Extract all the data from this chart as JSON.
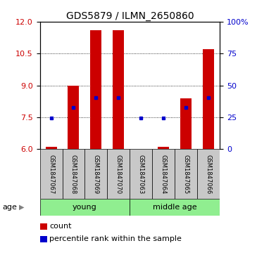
{
  "title": "GDS5879 / ILMN_2650860",
  "samples": [
    "GSM1847067",
    "GSM1847068",
    "GSM1847069",
    "GSM1847070",
    "GSM1847063",
    "GSM1847064",
    "GSM1847065",
    "GSM1847066"
  ],
  "bar_values": [
    6.1,
    9.0,
    11.6,
    11.6,
    6.0,
    6.1,
    8.4,
    10.7
  ],
  "bar_base": 6.0,
  "percentile_values": [
    7.48,
    7.95,
    8.42,
    8.42,
    7.48,
    7.48,
    7.95,
    8.42
  ],
  "ylim_left": [
    6,
    12
  ],
  "ylim_right": [
    0,
    100
  ],
  "yticks_left": [
    6,
    7.5,
    9,
    10.5,
    12
  ],
  "yticks_right": [
    0,
    25,
    50,
    75,
    100
  ],
  "ytick_right_labels": [
    "0",
    "25",
    "50",
    "75",
    "100%"
  ],
  "bar_color": "#cc0000",
  "dot_color": "#0000cc",
  "groups": [
    {
      "label": "young",
      "start": 0,
      "end": 4
    },
    {
      "label": "middle age",
      "start": 4,
      "end": 8
    }
  ],
  "group_color": "#90ee90",
  "label_area_color": "#c8c8c8",
  "age_label": "age",
  "legend_items": [
    {
      "color": "#cc0000",
      "label": "count"
    },
    {
      "color": "#0000cc",
      "label": "percentile rank within the sample"
    }
  ],
  "bar_width": 0.5,
  "title_fontsize": 10,
  "tick_fontsize": 8,
  "label_fontsize": 8,
  "sample_label_fontsize": 6
}
